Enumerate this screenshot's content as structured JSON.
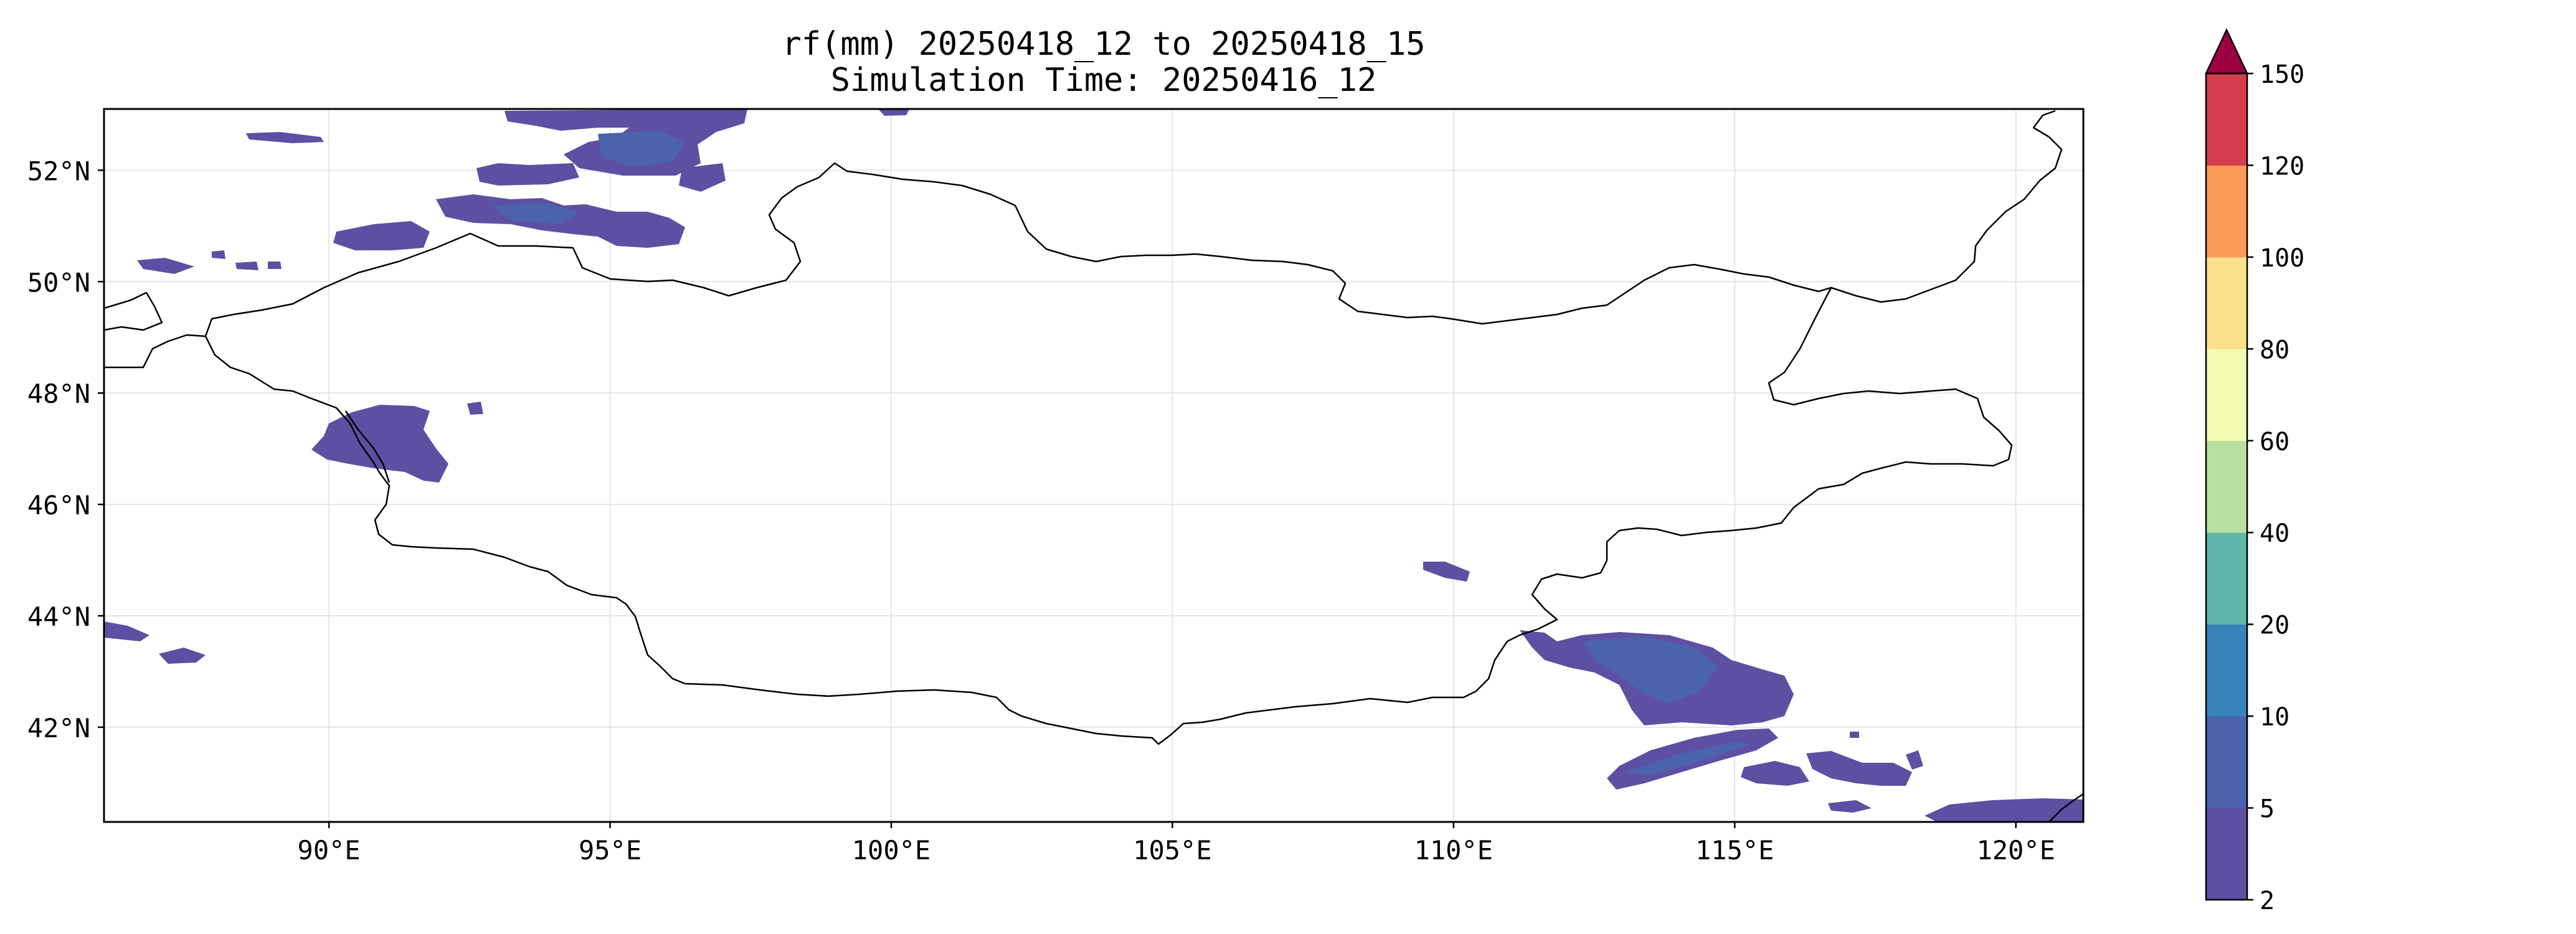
{
  "title": {
    "line1": "rf(mm) 20250418_12 to 20250418_15",
    "line2": "Simulation Time: 20250416_12"
  },
  "map": {
    "extent": {
      "lon_min": 86,
      "lon_max": 121.2,
      "lat_min": 40.3,
      "lat_max": 53.1
    },
    "gridlines": true,
    "lat_ticks": [
      {
        "value": 42,
        "label": "42°N"
      },
      {
        "value": 44,
        "label": "44°N"
      },
      {
        "value": 46,
        "label": "46°N"
      },
      {
        "value": 48,
        "label": "48°N"
      },
      {
        "value": 50,
        "label": "50°N"
      },
      {
        "value": 52,
        "label": "52°N"
      }
    ],
    "lon_ticks": [
      {
        "value": 90,
        "label": "90°E"
      },
      {
        "value": 95,
        "label": "95°E"
      },
      {
        "value": 100,
        "label": "100°E"
      },
      {
        "value": 105,
        "label": "105°E"
      },
      {
        "value": 110,
        "label": "110°E"
      },
      {
        "value": 115,
        "label": "115°E"
      },
      {
        "value": 120,
        "label": "120°E"
      }
    ],
    "colors": {
      "border": "#000000",
      "grid": "#e6e6e6",
      "rain_low": "#5e4fa2",
      "rain_mid": "#3f60ae"
    }
  },
  "colorbar": {
    "extend": "max",
    "levels": [
      {
        "value": 2,
        "label": "2",
        "color": "#5e4fa2"
      },
      {
        "value": 5,
        "label": "5",
        "color": "#4a63ac"
      },
      {
        "value": 10,
        "label": "10",
        "color": "#3682ba"
      },
      {
        "value": 20,
        "label": "20",
        "color": "#5db6a9"
      },
      {
        "value": 40,
        "label": "40",
        "color": "#b8e1a1"
      },
      {
        "value": 60,
        "label": "60",
        "color": "#f2f9b2"
      },
      {
        "value": 80,
        "label": "80",
        "color": "#fde18a"
      },
      {
        "value": 100,
        "label": "100",
        "color": "#fb9b58"
      },
      {
        "value": 120,
        "label": "120",
        "color": "#d53e4f"
      },
      {
        "value": 150,
        "label": "150",
        "color": "#9e0142"
      }
    ]
  }
}
